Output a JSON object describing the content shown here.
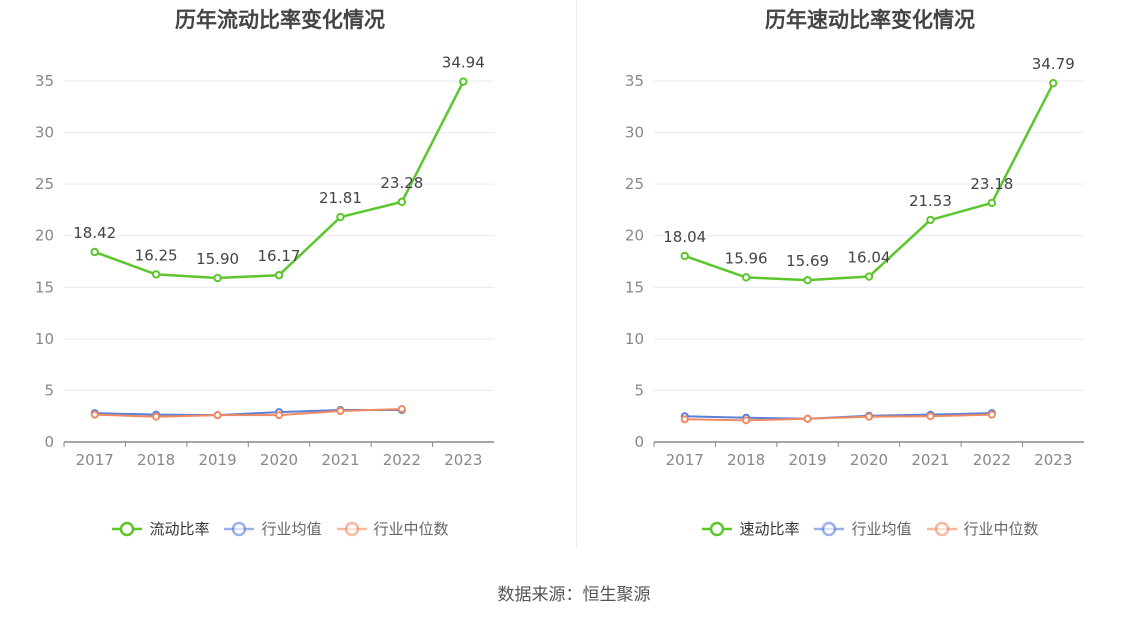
{
  "chart_data": [
    {
      "type": "line",
      "title": "历年流动比率变化情况",
      "categories": [
        "2017",
        "2018",
        "2019",
        "2020",
        "2021",
        "2022",
        "2023"
      ],
      "ylim": [
        0,
        35
      ],
      "yticks": [
        0,
        5,
        10,
        15,
        20,
        25,
        30,
        35
      ],
      "series": [
        {
          "name": "流动比率",
          "color": "#5dc62c",
          "values": [
            18.42,
            16.25,
            15.9,
            16.17,
            21.81,
            23.28,
            34.94
          ],
          "labels": [
            "18.42",
            "16.25",
            "15.90",
            "16.17",
            "21.81",
            "23.28",
            "34.94"
          ]
        },
        {
          "name": "行业均值",
          "color": "#5b7fd6",
          "values": [
            2.8,
            2.65,
            2.6,
            2.9,
            3.1,
            3.1,
            null
          ]
        },
        {
          "name": "行业中位数",
          "color": "#ef8a62",
          "values": [
            2.65,
            2.45,
            2.6,
            2.6,
            3.0,
            3.2,
            null
          ]
        }
      ]
    },
    {
      "type": "line",
      "title": "历年速动比率变化情况",
      "categories": [
        "2017",
        "2018",
        "2019",
        "2020",
        "2021",
        "2022",
        "2023"
      ],
      "ylim": [
        0,
        35
      ],
      "yticks": [
        0,
        5,
        10,
        15,
        20,
        25,
        30,
        35
      ],
      "series": [
        {
          "name": "速动比率",
          "color": "#5dc62c",
          "values": [
            18.04,
            15.96,
            15.69,
            16.04,
            21.53,
            23.18,
            34.79
          ],
          "labels": [
            "18.04",
            "15.96",
            "15.69",
            "16.04",
            "21.53",
            "23.18",
            "34.79"
          ]
        },
        {
          "name": "行业均值",
          "color": "#5b7fd6",
          "values": [
            2.5,
            2.35,
            2.25,
            2.55,
            2.65,
            2.8,
            null
          ]
        },
        {
          "name": "行业中位数",
          "color": "#ef8a62",
          "values": [
            2.2,
            2.1,
            2.25,
            2.45,
            2.5,
            2.65,
            null
          ]
        }
      ]
    }
  ],
  "source": "数据来源：恒生聚源"
}
